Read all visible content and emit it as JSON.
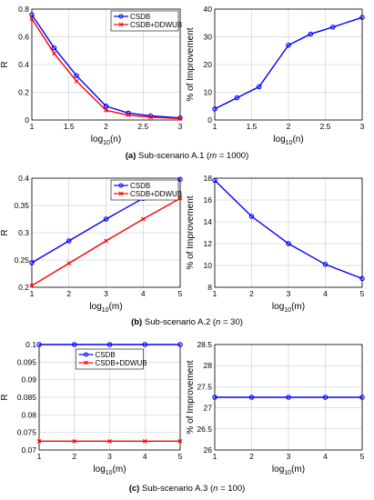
{
  "colors": {
    "series1": "#0000ff",
    "series2": "#ff0000",
    "axis": "#000000",
    "grid": "#c0c0c0"
  },
  "chart_data": [
    {
      "type": "line",
      "ylabel": "R",
      "xlabel_base": "log",
      "xlabel_sub": "10",
      "xlabel_tail": "(n)",
      "xlim": [
        1,
        3
      ],
      "ylim": [
        0,
        0.8
      ],
      "xticks": [
        "1",
        "1.5",
        "2",
        "2.5",
        "3"
      ],
      "yticks": [
        "0",
        "0.2",
        "0.4",
        "0.6",
        "0.8"
      ],
      "grid": true,
      "legend": "top-right",
      "x": [
        1,
        1.301,
        1.602,
        2,
        2.301,
        2.602,
        3
      ],
      "series": [
        {
          "name": "CSDB",
          "values": [
            0.76,
            0.52,
            0.32,
            0.1,
            0.05,
            0.03,
            0.015
          ],
          "marker": "circle"
        },
        {
          "name": "CSDB+DDWUB",
          "values": [
            0.73,
            0.48,
            0.28,
            0.07,
            0.035,
            0.02,
            0.01
          ],
          "marker": "x"
        }
      ]
    },
    {
      "type": "line",
      "ylabel": "% of Improvement",
      "xlabel_base": "log",
      "xlabel_sub": "10",
      "xlabel_tail": "(n)",
      "xlim": [
        1,
        3
      ],
      "ylim": [
        0,
        40
      ],
      "xticks": [
        "1",
        "1.5",
        "2",
        "2.5",
        "3"
      ],
      "yticks": [
        "0",
        "10",
        "20",
        "30",
        "40"
      ],
      "grid": true,
      "x": [
        1,
        1.301,
        1.602,
        2,
        2.301,
        2.602,
        3
      ],
      "series": [
        {
          "values": [
            4,
            8,
            12,
            27,
            31,
            33.5,
            37
          ],
          "marker": "circle"
        }
      ]
    },
    {
      "type": "line",
      "ylabel": "R",
      "xlabel_base": "log",
      "xlabel_sub": "10",
      "xlabel_tail": "(m)",
      "xlim": [
        1,
        5
      ],
      "ylim": [
        0.2,
        0.4
      ],
      "xticks": [
        "1",
        "2",
        "3",
        "4",
        "5"
      ],
      "yticks": [
        "0.2",
        "0.25",
        "0.3",
        "0.35",
        "0.4"
      ],
      "grid": true,
      "legend": "top-right",
      "x": [
        1,
        2,
        3,
        4,
        5
      ],
      "series": [
        {
          "name": "CSDB",
          "values": [
            0.245,
            0.285,
            0.325,
            0.363,
            0.398
          ],
          "marker": "circle"
        },
        {
          "name": "CSDB+DDWUB",
          "values": [
            0.203,
            0.244,
            0.285,
            0.325,
            0.363
          ],
          "marker": "x"
        }
      ]
    },
    {
      "type": "line",
      "ylabel": "% of Improvement",
      "xlabel_base": "log",
      "xlabel_sub": "10",
      "xlabel_tail": "(m)",
      "xlim": [
        1,
        5
      ],
      "ylim": [
        8,
        18
      ],
      "xticks": [
        "1",
        "2",
        "3",
        "4",
        "5"
      ],
      "yticks": [
        "8",
        "10",
        "12",
        "14",
        "16",
        "18"
      ],
      "grid": true,
      "x": [
        1,
        2,
        3,
        4,
        5
      ],
      "series": [
        {
          "values": [
            17.8,
            14.5,
            12.0,
            10.1,
            8.8
          ],
          "marker": "circle"
        }
      ]
    },
    {
      "type": "line",
      "ylabel": "R",
      "xlabel_base": "log",
      "xlabel_sub": "10",
      "xlabel_tail": "(m)",
      "xlim": [
        1,
        5
      ],
      "ylim": [
        0.07,
        0.1
      ],
      "xticks": [
        "1",
        "2",
        "3",
        "4",
        "5"
      ],
      "yticks": [
        "0.07",
        "0.075",
        "0.08",
        "0.085",
        "0.09",
        "0.095",
        "0.1"
      ],
      "grid": true,
      "legend": "top-center",
      "x": [
        1,
        2,
        3,
        4,
        5
      ],
      "series": [
        {
          "name": "CSDB",
          "values": [
            0.1,
            0.1,
            0.1,
            0.1,
            0.1
          ],
          "marker": "circle"
        },
        {
          "name": "CSDB+DDWUB",
          "values": [
            0.0725,
            0.0725,
            0.0725,
            0.0725,
            0.0725
          ],
          "marker": "x"
        }
      ]
    },
    {
      "type": "line",
      "ylabel": "% of Improvement",
      "xlabel_base": "log",
      "xlabel_sub": "10",
      "xlabel_tail": "(m)",
      "xlim": [
        1,
        5
      ],
      "ylim": [
        26,
        28.5
      ],
      "xticks": [
        "1",
        "2",
        "3",
        "4",
        "5"
      ],
      "yticks": [
        "26",
        "26.5",
        "27",
        "27.5",
        "28",
        "28.5"
      ],
      "grid": true,
      "x": [
        1,
        2,
        3,
        4,
        5
      ],
      "series": [
        {
          "values": [
            27.25,
            27.25,
            27.25,
            27.25,
            27.25
          ],
          "marker": "circle"
        }
      ]
    }
  ],
  "captions": [
    {
      "tag": "(a)",
      "text": "Sub-scenario A.1 (",
      "var": "m",
      "rest": " = 1000)"
    },
    {
      "tag": "(b)",
      "text": "Sub-scenario A.2 (",
      "var": "n",
      "rest": " = 30)"
    },
    {
      "tag": "(c)",
      "text": "Sub-scenario A.3 (",
      "var": "n",
      "rest": " = 100)"
    }
  ]
}
